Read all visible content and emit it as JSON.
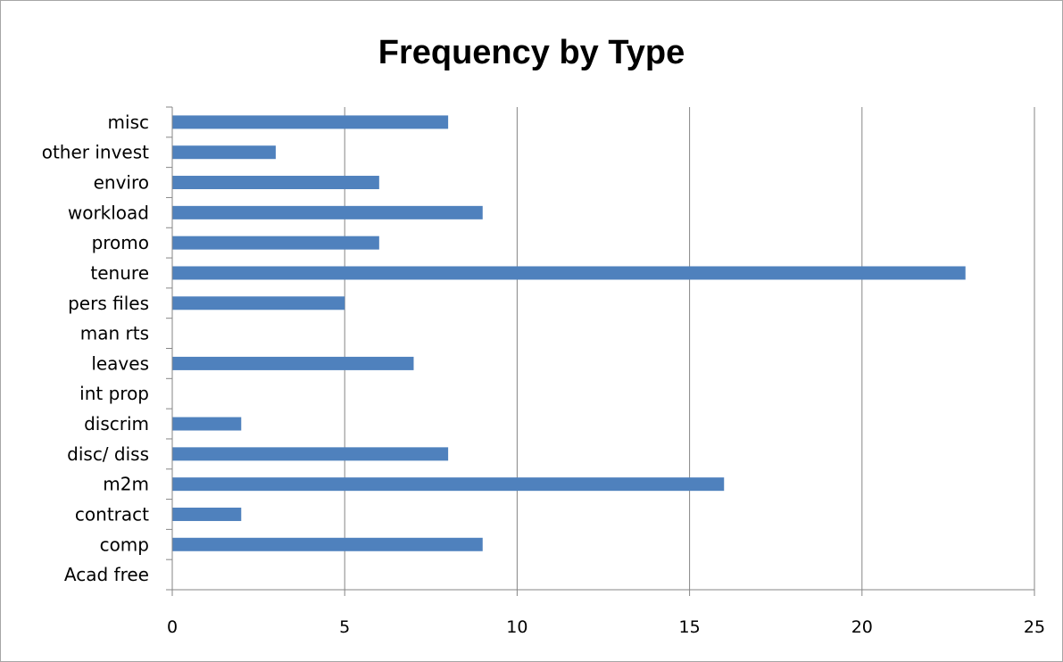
{
  "chart_data": {
    "type": "bar",
    "orientation": "horizontal",
    "title": "Frequency by Type",
    "categories": [
      "misc",
      "other invest",
      "enviro",
      "workload",
      "promo",
      "tenure",
      "pers files",
      "man rts",
      "leaves",
      "int prop",
      "discrim",
      "disc/ diss",
      "m2m",
      "contract",
      "comp",
      "Acad free"
    ],
    "values": [
      8,
      3,
      6,
      9,
      6,
      23,
      5,
      0,
      7,
      0,
      2,
      8,
      16,
      2,
      9,
      0
    ],
    "xlim": [
      0,
      25
    ],
    "xticks": [
      "0",
      "5",
      "10",
      "15",
      "20",
      "25"
    ],
    "grid": "vertical",
    "legend": "none",
    "colors": {
      "bar": "#4f81bd",
      "grid": "#868686",
      "axis": "#868686"
    }
  }
}
